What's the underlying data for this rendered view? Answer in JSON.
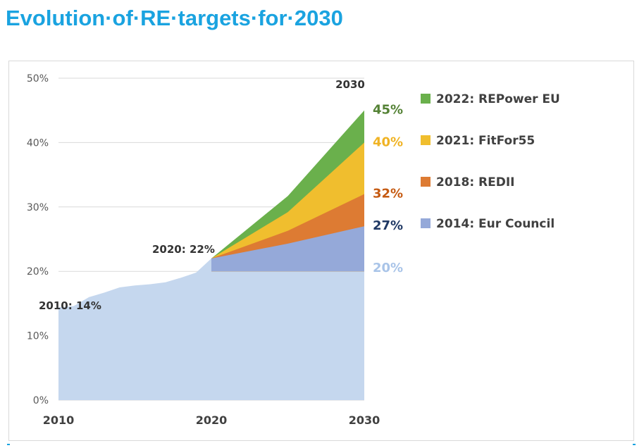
{
  "page": {
    "title": "Evolution·of·RE·targets·for·2030"
  },
  "chart_data": {
    "type": "area",
    "title": "",
    "xlabel": "",
    "ylabel": "",
    "xlim": [
      2010,
      2030
    ],
    "ylim": [
      0,
      50
    ],
    "x_ticks": [
      "2010",
      "2020",
      "2030"
    ],
    "y_ticks": [
      "0%",
      "10%",
      "20%",
      "30%",
      "40%",
      "50%"
    ],
    "grid": "horizontal",
    "legend_position": "right",
    "baseline": {
      "name": "",
      "color": "#c5d7ee",
      "points": [
        [
          2010,
          14.4
        ],
        [
          2011,
          14.6
        ],
        [
          2012,
          16.0
        ],
        [
          2013,
          16.7
        ],
        [
          2014,
          17.5
        ],
        [
          2015,
          17.8
        ],
        [
          2016,
          18.0
        ],
        [
          2017,
          18.3
        ],
        [
          2018,
          19.0
        ],
        [
          2019,
          19.8
        ],
        [
          2020,
          22.0
        ],
        [
          2030,
          20.0
        ]
      ]
    },
    "series": [
      {
        "name": "2014: Eur Council",
        "color": "#95a9d9",
        "label_color": "#1f3864",
        "end_value": 27,
        "end_label": "27%",
        "points": [
          [
            2020,
            22.0
          ],
          [
            2025,
            24.3
          ],
          [
            2030,
            27.0
          ]
        ]
      },
      {
        "name": "2018: REDII",
        "color": "#dd7b33",
        "label_color": "#c55a11",
        "end_value": 32,
        "end_label": "32%",
        "points": [
          [
            2020,
            22.0
          ],
          [
            2025,
            26.3
          ],
          [
            2030,
            32.0
          ]
        ]
      },
      {
        "name": "2021: FitFor55",
        "color": "#f0be2e",
        "label_color": "#f0b323",
        "end_value": 40,
        "end_label": "40%",
        "points": [
          [
            2020,
            22.0
          ],
          [
            2025,
            29.2
          ],
          [
            2030,
            40.0
          ]
        ]
      },
      {
        "name": "2022: REPower EU",
        "color": "#6ab04c",
        "label_color": "#548235",
        "end_value": 45,
        "end_label": "45%",
        "points": [
          [
            2020,
            22.0
          ],
          [
            2025,
            31.7
          ],
          [
            2030,
            45.0
          ]
        ]
      }
    ],
    "floor_label": {
      "text": "20%",
      "color": "#a9c4e8",
      "value": 20
    },
    "annotations": [
      {
        "text": "2010: 14%",
        "x": 2010,
        "y": 14
      },
      {
        "text": "2020: 22%",
        "x": 2020,
        "y": 22
      },
      {
        "text": "2030",
        "x": 2030,
        "y": 50
      }
    ]
  }
}
